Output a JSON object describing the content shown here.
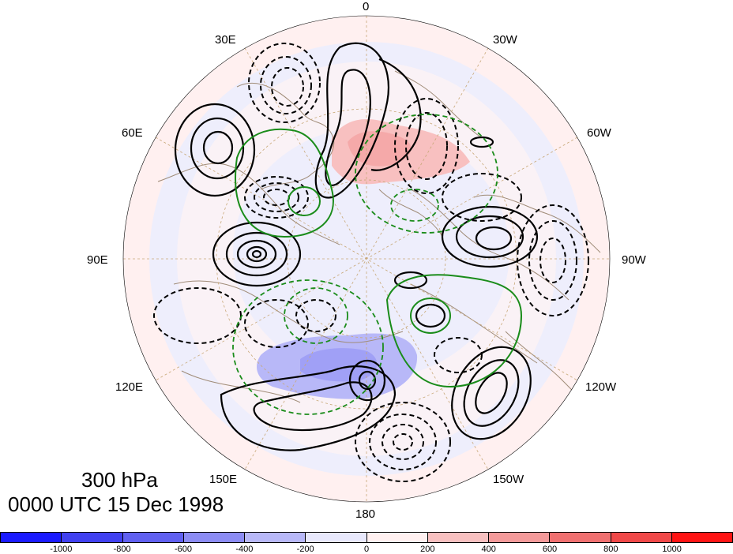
{
  "figure": {
    "level_label": "300 hPa",
    "time_label": "0000 UTC 15 Dec 1998"
  },
  "longitude_labels": [
    {
      "id": "lon-0",
      "text": "0"
    },
    {
      "id": "lon-30w",
      "text": "30W"
    },
    {
      "id": "lon-60w",
      "text": "60W"
    },
    {
      "id": "lon-90w",
      "text": "90W"
    },
    {
      "id": "lon-120w",
      "text": "120W"
    },
    {
      "id": "lon-150w",
      "text": "150W"
    },
    {
      "id": "lon-180",
      "text": "180"
    },
    {
      "id": "lon-150e",
      "text": "150E"
    },
    {
      "id": "lon-120e",
      "text": "120E"
    },
    {
      "id": "lon-90e",
      "text": "90E"
    },
    {
      "id": "lon-60e",
      "text": "60E"
    },
    {
      "id": "lon-30e",
      "text": "30E"
    }
  ],
  "colorbar": {
    "colors": [
      "#1a1aff",
      "#4040f0",
      "#6060f0",
      "#8c8cf4",
      "#b8b8f8",
      "#e8e8fc",
      "#fff0f0",
      "#f8c0c0",
      "#f49a9a",
      "#f07070",
      "#f04848",
      "#ff1414"
    ],
    "ticks": [
      "-1000",
      "-800",
      "-600",
      "-400",
      "-200",
      "0",
      "200",
      "400",
      "600",
      "800",
      "1000"
    ]
  },
  "map_colors": {
    "shade_neg": "#c8c8f8",
    "shade_pos": "#f8c8c8",
    "outer_ring": "#fff0f0",
    "inner_field": "#eeeefc",
    "coast": "#a08c78",
    "contour": "#000000",
    "green_contour": "#1a8c1a",
    "grid": "#c8a878"
  }
}
